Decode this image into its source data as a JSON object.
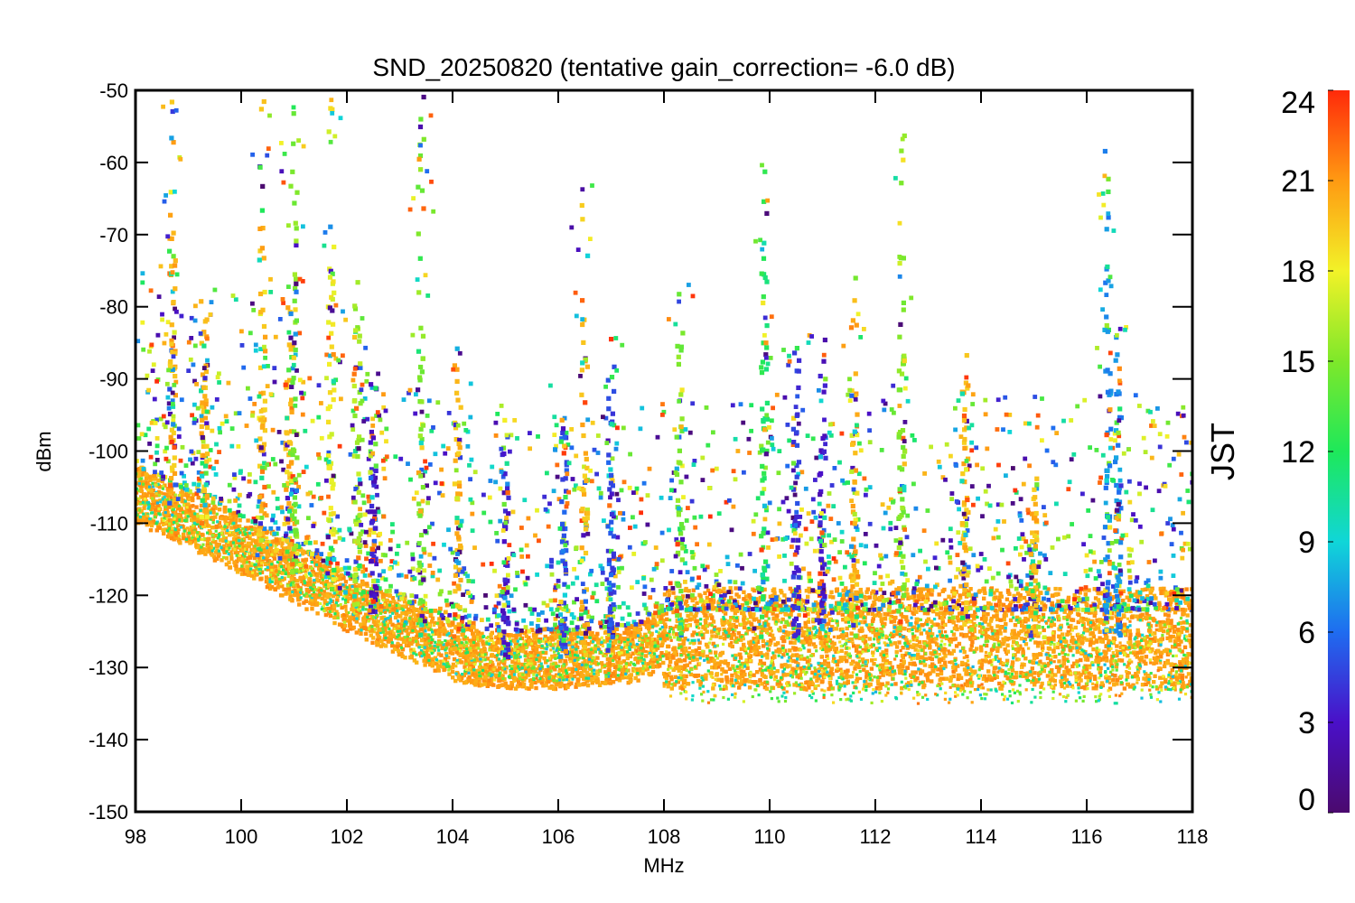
{
  "chart_data": {
    "type": "scatter",
    "title": "SND_20250820 (tentative gain_correction= -6.0 dB)",
    "xlabel": "MHz",
    "ylabel": "dBm",
    "xlim": [
      98,
      118
    ],
    "ylim": [
      -150,
      -50
    ],
    "x_ticks": [
      "98",
      "100",
      "102",
      "104",
      "106",
      "108",
      "110",
      "112",
      "114",
      "116",
      "118"
    ],
    "y_ticks": [
      "-50",
      "-60",
      "-70",
      "-80",
      "-90",
      "-100",
      "-110",
      "-120",
      "-130",
      "-140",
      "-150"
    ],
    "colorbar": {
      "label": "JST",
      "range": [
        0,
        24
      ],
      "ticks": [
        "24",
        "21",
        "18",
        "15",
        "12",
        "9",
        "6",
        "3",
        "0"
      ],
      "colormap": "rainbow (purple-blue-cyan-green-yellow-orange-red)"
    },
    "noise_floor": [
      {
        "mhz": 98.0,
        "dbm": -106
      },
      {
        "mhz": 100.0,
        "dbm": -113
      },
      {
        "mhz": 102.0,
        "dbm": -121
      },
      {
        "mhz": 103.5,
        "dbm": -126
      },
      {
        "mhz": 104.0,
        "dbm": -128
      },
      {
        "mhz": 105.0,
        "dbm": -129
      },
      {
        "mhz": 106.0,
        "dbm": -129
      },
      {
        "mhz": 107.5,
        "dbm": -128
      },
      {
        "mhz": 108.0,
        "dbm": -126
      },
      {
        "mhz": 110.0,
        "dbm": -126
      },
      {
        "mhz": 112.0,
        "dbm": -126
      },
      {
        "mhz": 114.0,
        "dbm": -126
      },
      {
        "mhz": 116.0,
        "dbm": -126
      },
      {
        "mhz": 118.0,
        "dbm": -126
      }
    ],
    "signals": [
      {
        "mhz": 98.7,
        "peak_dbm": -50,
        "jst": 20
      },
      {
        "mhz": 99.3,
        "peak_dbm": -77,
        "jst": 20
      },
      {
        "mhz": 100.4,
        "peak_dbm": -50,
        "jst": 20
      },
      {
        "mhz": 100.9,
        "peak_dbm": -78,
        "jst": 20
      },
      {
        "mhz": 101.0,
        "peak_dbm": -50,
        "jst": 15
      },
      {
        "mhz": 101.7,
        "peak_dbm": -50,
        "jst": 18
      },
      {
        "mhz": 102.2,
        "peak_dbm": -75,
        "jst": 16
      },
      {
        "mhz": 102.5,
        "peak_dbm": -90,
        "jst": 3
      },
      {
        "mhz": 103.4,
        "peak_dbm": -50,
        "jst": 15
      },
      {
        "mhz": 104.1,
        "peak_dbm": -85,
        "jst": 20
      },
      {
        "mhz": 105.0,
        "peak_dbm": -93,
        "jst": 3
      },
      {
        "mhz": 106.1,
        "peak_dbm": -90,
        "jst": 5
      },
      {
        "mhz": 106.5,
        "peak_dbm": -63,
        "jst": 20
      },
      {
        "mhz": 107.0,
        "peak_dbm": -82,
        "jst": 5
      },
      {
        "mhz": 108.3,
        "peak_dbm": -76,
        "jst": 15
      },
      {
        "mhz": 109.9,
        "peak_dbm": -60,
        "jst": 12
      },
      {
        "mhz": 110.5,
        "peak_dbm": -83,
        "jst": 4
      },
      {
        "mhz": 111.0,
        "peak_dbm": -83,
        "jst": 3
      },
      {
        "mhz": 111.6,
        "peak_dbm": -74,
        "jst": 20
      },
      {
        "mhz": 112.5,
        "peak_dbm": -55,
        "jst": 15
      },
      {
        "mhz": 113.7,
        "peak_dbm": -84,
        "jst": 20
      },
      {
        "mhz": 115.0,
        "peak_dbm": -103,
        "jst": 20
      },
      {
        "mhz": 116.4,
        "peak_dbm": -55,
        "jst": 7
      },
      {
        "mhz": 116.6,
        "peak_dbm": -79,
        "jst": 7
      }
    ]
  }
}
